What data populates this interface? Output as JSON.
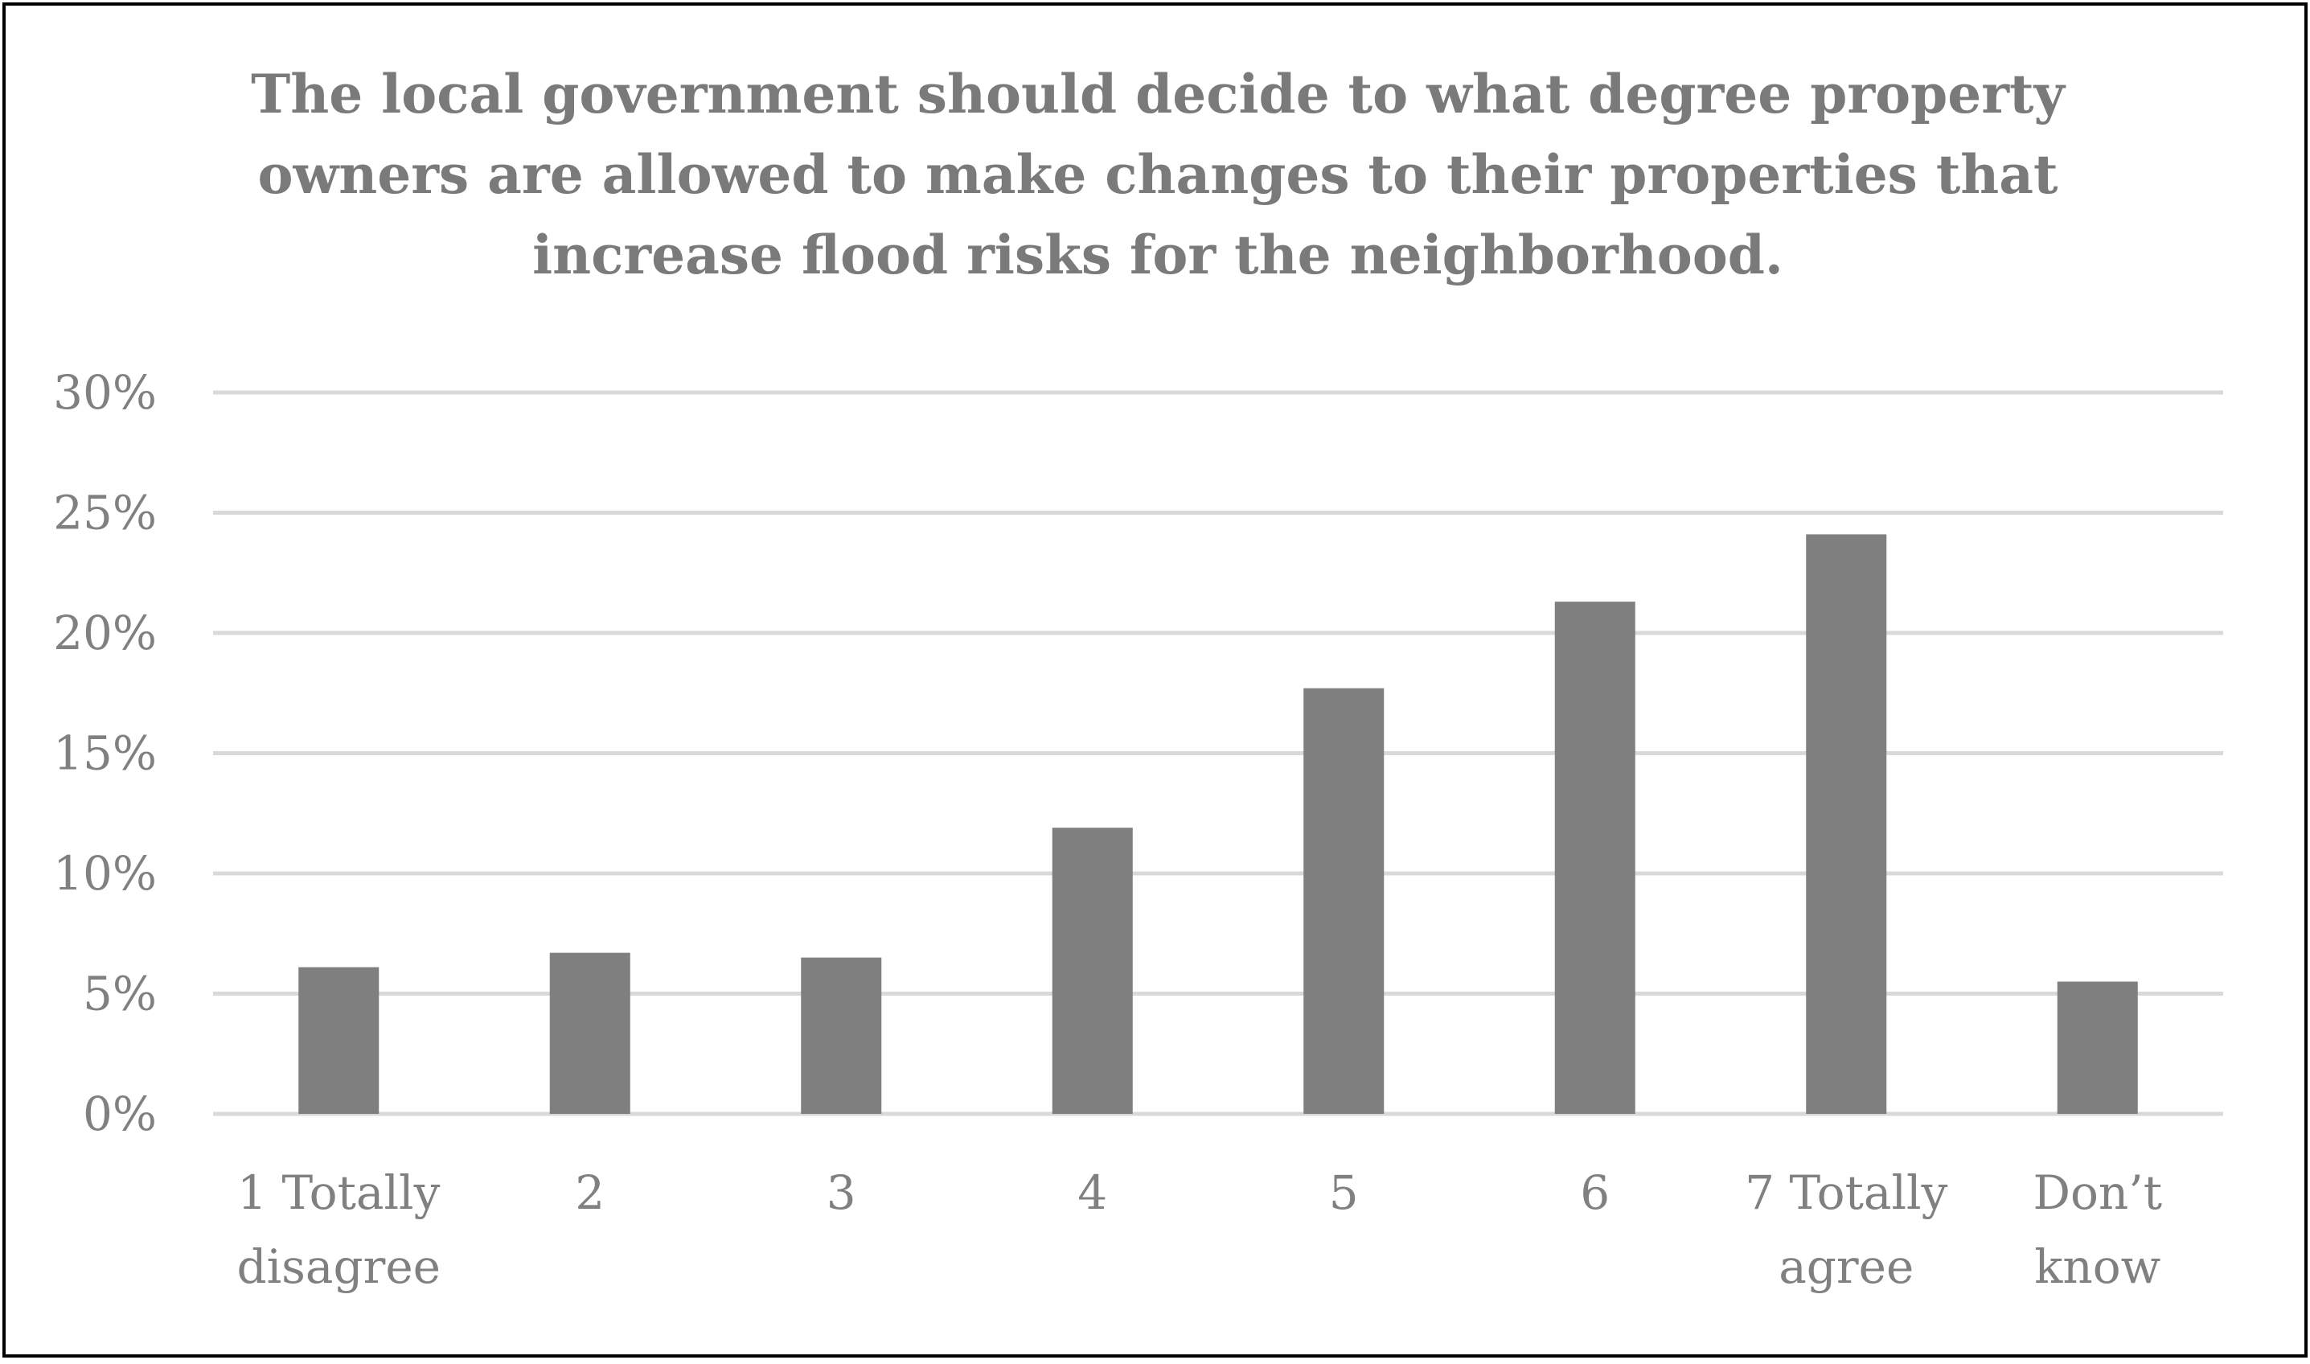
{
  "chart_data": {
    "type": "bar",
    "title_lines": [
      "The local government should decide to what degree property",
      "owners are allowed to make changes to their properties that",
      "increase flood risks for the neighborhood."
    ],
    "category_lines": [
      [
        "1 Totally",
        "disagree"
      ],
      [
        "2"
      ],
      [
        "3"
      ],
      [
        "4"
      ],
      [
        "5"
      ],
      [
        "6"
      ],
      [
        "7 Totally",
        "agree"
      ],
      [
        "Don’t",
        "know"
      ]
    ],
    "values": [
      6.1,
      6.7,
      6.5,
      11.9,
      17.7,
      21.3,
      24.1,
      5.5
    ],
    "value_unit": "%",
    "ylim": [
      0,
      30
    ],
    "yticks": [
      "0%",
      "5%",
      "10%",
      "15%",
      "20%",
      "25%",
      "30%"
    ],
    "xlabel": "",
    "ylabel": "",
    "grid": true,
    "legend": "none",
    "colors": {
      "bar": "#7f7f7f",
      "text": "#808080",
      "title": "#7a7a7a",
      "grid": "#d9d9d9",
      "border": "#000000"
    }
  }
}
